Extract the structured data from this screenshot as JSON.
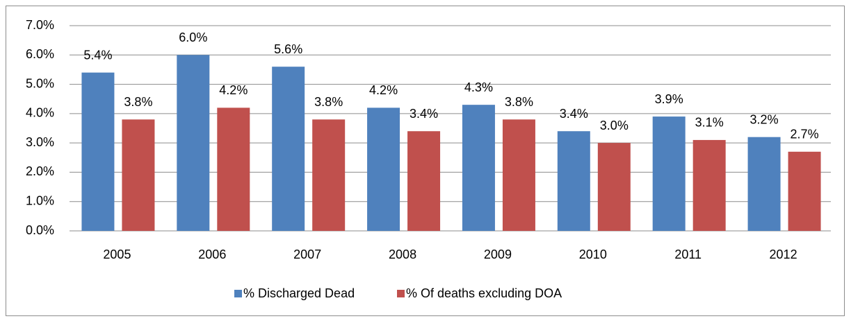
{
  "chart_data": {
    "type": "bar",
    "categories": [
      "2005",
      "2006",
      "2007",
      "2008",
      "2009",
      "2010",
      "2011",
      "2012"
    ],
    "series": [
      {
        "name": "% Discharged Dead",
        "color": "#4f81bd",
        "values": [
          5.4,
          6.0,
          5.6,
          4.2,
          4.3,
          3.4,
          3.9,
          3.2
        ],
        "value_labels": [
          "5.4%",
          "6.0%",
          "5.6%",
          "4.2%",
          "4.3%",
          "3.4%",
          "3.9%",
          "3.2%"
        ]
      },
      {
        "name": "% Of deaths excluding DOA",
        "color": "#c0504d",
        "values": [
          3.8,
          4.2,
          3.8,
          3.4,
          3.8,
          3.0,
          3.1,
          2.7
        ],
        "value_labels": [
          "3.8%",
          "4.2%",
          "3.8%",
          "3.4%",
          "3.8%",
          "3.0%",
          "3.1%",
          "2.7%"
        ]
      }
    ],
    "ylim": [
      0,
      7
    ],
    "yticks": [
      {
        "value": 0,
        "label": "0.0%"
      },
      {
        "value": 1,
        "label": "1.0%"
      },
      {
        "value": 2,
        "label": "2.0%"
      },
      {
        "value": 3,
        "label": "3.0%"
      },
      {
        "value": 4,
        "label": "4.0%"
      },
      {
        "value": 5,
        "label": "5.0%"
      },
      {
        "value": 6,
        "label": "6.0%"
      },
      {
        "value": 7,
        "label": "7.0%"
      }
    ],
    "grid": true,
    "legend": "bottom"
  }
}
